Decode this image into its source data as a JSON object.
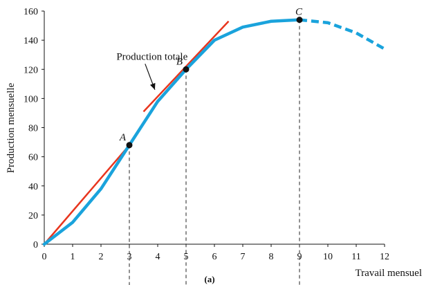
{
  "chart_data": {
    "type": "line",
    "xlabel": "Travail mensuel",
    "ylabel": "Production mensuelle",
    "caption": "(a)",
    "xlim": [
      0,
      12
    ],
    "ylim": [
      0,
      160
    ],
    "x_ticks": [
      0,
      1,
      2,
      3,
      4,
      5,
      6,
      7,
      8,
      9,
      10,
      11,
      12
    ],
    "y_ticks": [
      0,
      20,
      40,
      60,
      80,
      100,
      120,
      140,
      160
    ],
    "grid": false,
    "series": [
      {
        "name": "Production totale",
        "color": "#1aa3dc",
        "solid": {
          "x": [
            0,
            1,
            2,
            3,
            4,
            5,
            6,
            7,
            8,
            9
          ],
          "y": [
            0,
            15,
            38,
            68,
            98,
            120,
            140,
            149,
            153,
            154
          ]
        },
        "dashed": {
          "x": [
            9,
            10,
            11,
            12
          ],
          "y": [
            154,
            152,
            145,
            134
          ]
        }
      }
    ],
    "tangents": [
      {
        "color": "#e8351e",
        "x": [
          0,
          3
        ],
        "y": [
          0,
          68
        ]
      },
      {
        "color": "#e8351e",
        "x": [
          3.5,
          6.5
        ],
        "y": [
          91,
          153
        ]
      }
    ],
    "points": [
      {
        "label": "A",
        "x": 3,
        "y": 68
      },
      {
        "label": "B",
        "x": 5,
        "y": 120
      },
      {
        "label": "C",
        "x": 9,
        "y": 154
      }
    ],
    "dropline_x": [
      3,
      5,
      9
    ],
    "annotation": {
      "text": "Production totale",
      "x": 3.8,
      "y": 129,
      "arrow_to": [
        3.9,
        106
      ]
    }
  }
}
